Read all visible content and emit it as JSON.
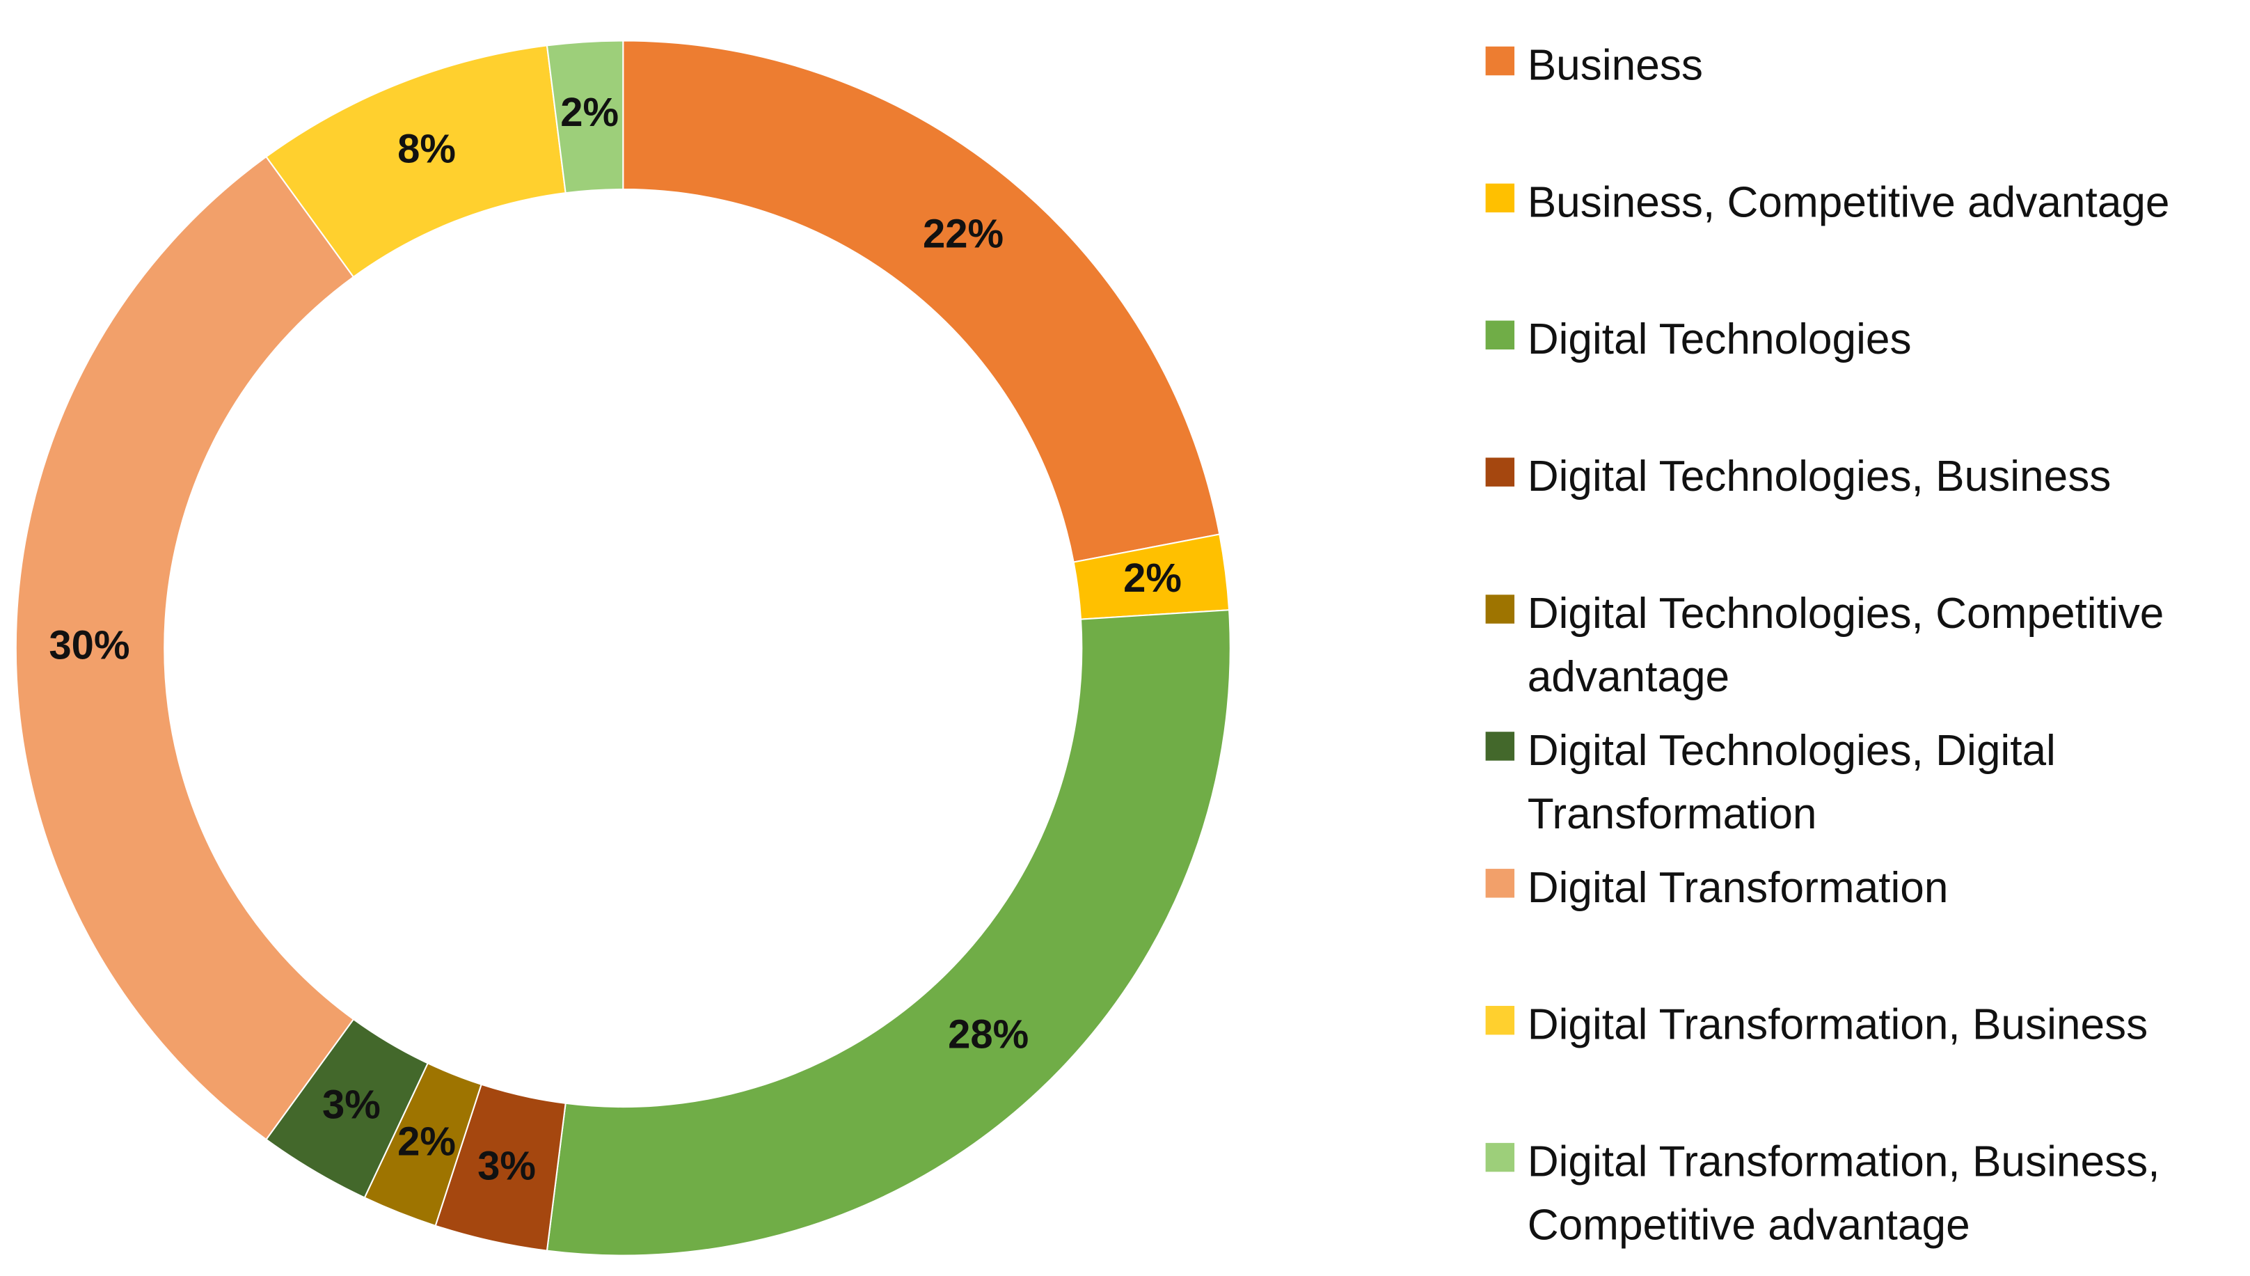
{
  "chart_data": {
    "type": "donut",
    "categories": [
      "Business",
      "Business, Competitive advantage",
      "Digital Technologies",
      "Digital Technologies, Business",
      "Digital Technologies, Competitive advantage",
      "Digital Technologies, Digital Transformation",
      "Digital Transformation",
      "Digital Transformation, Business",
      "Digital Transformation, Business, Competitive advantage"
    ],
    "values": [
      22,
      2,
      28,
      3,
      2,
      3,
      30,
      8,
      2
    ],
    "value_labels": [
      "22%",
      "2%",
      "28%",
      "3%",
      "2%",
      "3%",
      "30%",
      "8%",
      "2%"
    ],
    "colors": [
      "#ed7d31",
      "#ffc000",
      "#70ad47",
      "#a5470f",
      "#9e7400",
      "#43682b",
      "#f2a06a",
      "#ffd02e",
      "#9dcf7a"
    ],
    "legend": "right"
  }
}
